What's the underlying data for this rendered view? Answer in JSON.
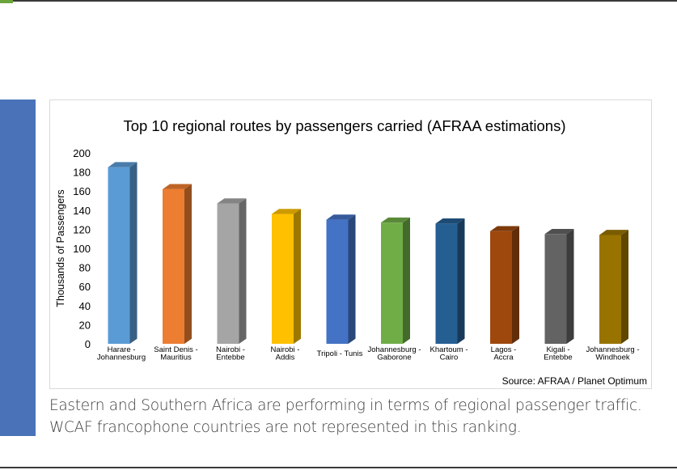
{
  "caption": "Eastern and Southern Africa are performing in terms of regional passenger traffic. WCAF francophone countries are not represented in this ranking.",
  "chart_data": {
    "type": "bar",
    "title": "Top 10 regional routes by passengers carried (AFRAA estimations)",
    "xlabel": "",
    "ylabel": "Thousands of Passengers",
    "ylim": [
      0,
      200
    ],
    "yticks": [
      0,
      20,
      40,
      60,
      80,
      100,
      120,
      140,
      160,
      180,
      200
    ],
    "grid": false,
    "source": "Source: AFRAA / Planet Optimum",
    "categories": [
      [
        "Harare -",
        "Johannesburg"
      ],
      [
        "Saint Denis -",
        "Mauritius"
      ],
      [
        "Nairobi -",
        "Entebbe"
      ],
      [
        "Nairobi -",
        "Addis"
      ],
      [
        "Tripoli - Tunis"
      ],
      [
        "Johannesburg -",
        "Gaborone"
      ],
      [
        "Khartoum -",
        "Cairo"
      ],
      [
        "Lagos -",
        "Accra"
      ],
      [
        "Kigali -",
        "Entebbe"
      ],
      [
        "Johannesburg -",
        "Windhoek"
      ]
    ],
    "values": [
      185,
      162,
      147,
      136,
      130,
      127,
      126,
      118,
      115,
      114
    ],
    "colors": [
      "#5b9bd5",
      "#ed7d31",
      "#a5a5a5",
      "#ffc000",
      "#4472c4",
      "#70ad47",
      "#255e91",
      "#9e480e",
      "#636363",
      "#997300"
    ]
  }
}
